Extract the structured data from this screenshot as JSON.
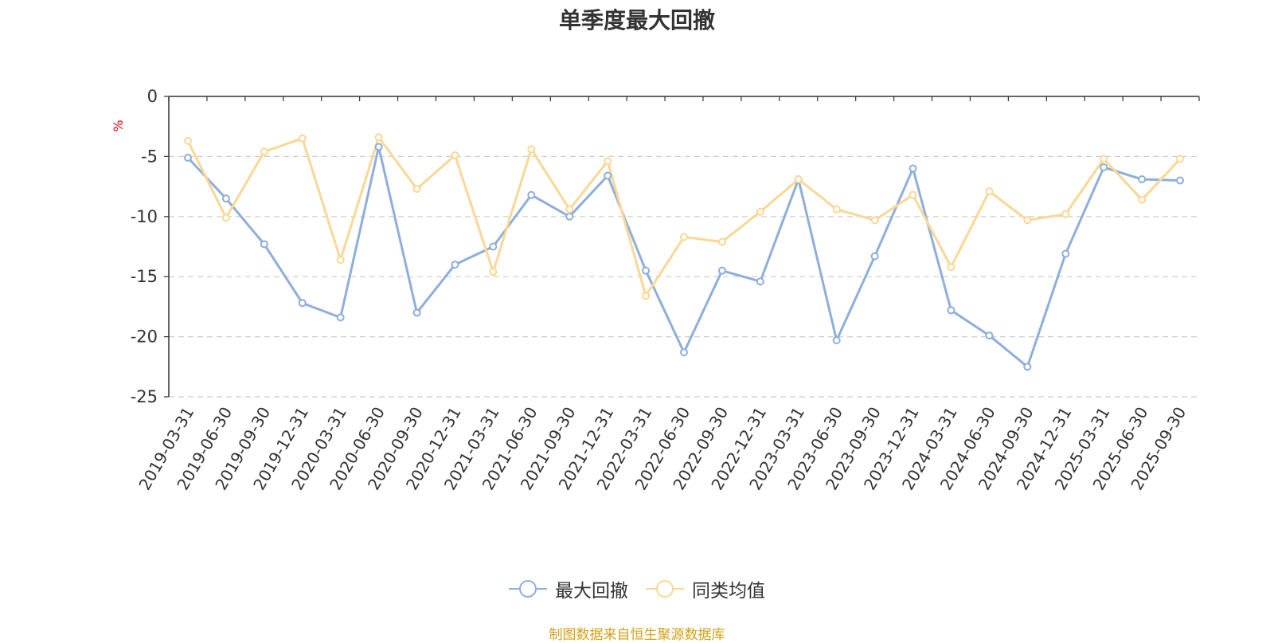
{
  "chart_data": {
    "type": "line",
    "title": "单季度最大回撤",
    "ylabel": "%",
    "ylim": [
      -25,
      0
    ],
    "yticks": [
      0,
      -5,
      -10,
      -15,
      -20,
      -25
    ],
    "grid": true,
    "legend_position": "bottom",
    "categories": [
      "2019-03-31",
      "2019-06-30",
      "2019-09-30",
      "2019-12-31",
      "2020-03-31",
      "2020-06-30",
      "2020-09-30",
      "2020-12-31",
      "2021-03-31",
      "2021-06-30",
      "2021-09-30",
      "2021-12-31",
      "2022-03-31",
      "2022-06-30",
      "2022-09-30",
      "2022-12-31",
      "2023-03-31",
      "2023-06-30",
      "2023-09-30",
      "2023-12-31",
      "2024-03-31",
      "2024-06-30",
      "2024-09-30",
      "2024-12-31",
      "2025-03-31",
      "2025-06-30",
      "2025-09-30"
    ],
    "series": [
      {
        "name": "最大回撤",
        "color": "#8eaedc",
        "values": [
          -5.1,
          -8.5,
          -12.3,
          -17.2,
          -18.4,
          -4.2,
          -18.0,
          -14.0,
          -12.5,
          -8.2,
          -10.0,
          -6.6,
          -14.5,
          -21.3,
          -14.5,
          -15.4,
          -6.9,
          -20.3,
          -13.3,
          -6.0,
          -17.8,
          -19.9,
          -22.5,
          -13.1,
          -5.9,
          -6.9,
          -7.0
        ]
      },
      {
        "name": "同类均值",
        "color": "#fad795",
        "values": [
          -3.7,
          -10.1,
          -4.6,
          -3.5,
          -13.6,
          -3.4,
          -7.7,
          -4.9,
          -14.6,
          -4.4,
          -9.4,
          -5.4,
          -16.6,
          -11.7,
          -12.1,
          -9.6,
          -6.9,
          -9.4,
          -10.3,
          -8.2,
          -14.2,
          -7.9,
          -10.3,
          -9.8,
          -5.2,
          -8.6,
          -5.2
        ]
      }
    ]
  },
  "footer": {
    "source": "制图数据来自恒生聚源数据库"
  }
}
